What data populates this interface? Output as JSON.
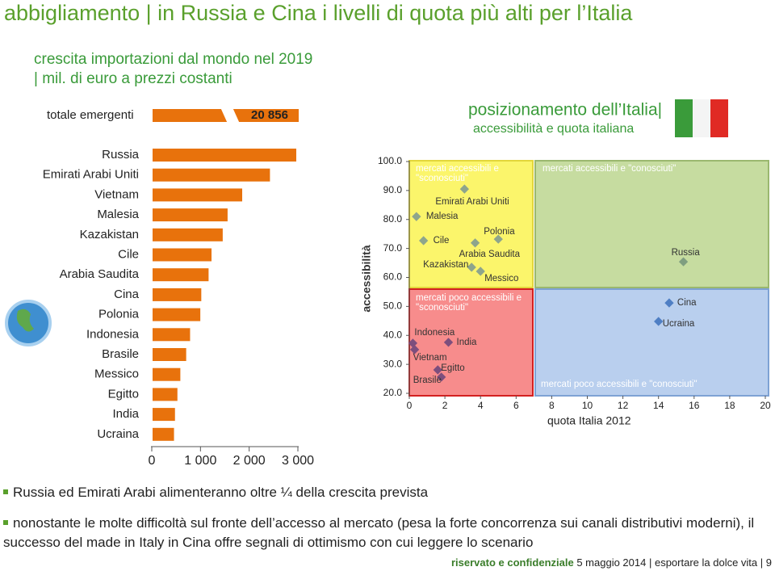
{
  "header": {
    "title": "abbigliamento | in Russia e Cina i livelli di quota più alti per l’Italia"
  },
  "chart_data": [
    {
      "type": "bar",
      "orientation": "horizontal",
      "subtitle": "crescita importazioni dal mondo nel 2019 | mil. di euro a prezzi costanti",
      "total": {
        "label": "totale emergenti",
        "value": 20856,
        "value_label": "20 856"
      },
      "categories": [
        "Russia",
        "Emirati Arabi Uniti",
        "Vietnam",
        "Malesia",
        "Kazakistan",
        "Cile",
        "Arabia Saudita",
        "Cina",
        "Polonia",
        "Indonesia",
        "Brasile",
        "Messico",
        "Egitto",
        "India",
        "Ucraina"
      ],
      "values": [
        2950,
        2410,
        1840,
        1540,
        1440,
        1210,
        1150,
        1000,
        980,
        770,
        690,
        570,
        510,
        460,
        440
      ],
      "color": "#e8720c",
      "xlim": [
        0,
        3000
      ],
      "xticks": [
        0,
        {
          "value": 1000,
          "label": "1 000"
        },
        {
          "value": 2000,
          "label": "2 000"
        },
        {
          "value": 3000,
          "label": "3 000"
        }
      ]
    },
    {
      "type": "scatter",
      "title": "posizionamento dell’Italia|",
      "subtitle": "accessibilità e quota italiana",
      "x_label": "quota Italia 2012",
      "y_label": "accessibilità",
      "quadrants": [
        "mercati accessibili e \"sconosciuti\"",
        "mercati accessibili e \"conosciuti\"",
        "mercati  poco accessibili e \"sconosciuti\"",
        "mercati  poco accessibili e \"conosciuti\""
      ],
      "points": [
        {
          "label": "Emirati Arabi Uniti",
          "x": 3.1,
          "y": 90.5,
          "color": "#8ea58c"
        },
        {
          "label": "Malesia",
          "x": 0.4,
          "y": 81.0,
          "color": "#8ea58c"
        },
        {
          "label": "Polonia",
          "x": 5.0,
          "y": 73.2,
          "color": "#8ea58c"
        },
        {
          "label": "Cile",
          "x": 0.8,
          "y": 72.7,
          "color": "#8ea58c"
        },
        {
          "label": "Arabia Saudita",
          "x": 3.7,
          "y": 71.9,
          "color": "#8ea58c"
        },
        {
          "label": "Kazakistan",
          "x": 3.5,
          "y": 63.5,
          "color": "#8ea58c"
        },
        {
          "label": "Messico",
          "x": 4.0,
          "y": 62.1,
          "color": "#8ea58c"
        },
        {
          "label": "Russia",
          "x": 15.4,
          "y": 65.4,
          "color": "#7f9e80"
        },
        {
          "label": "Cina",
          "x": 14.6,
          "y": 51.2,
          "color": "#4f7fc4"
        },
        {
          "label": "Ucraina",
          "x": 14.0,
          "y": 44.8,
          "color": "#4f7fc4"
        },
        {
          "label": "Indonesia",
          "x": 0.2,
          "y": 37.3,
          "color": "#7d4e7d"
        },
        {
          "label": "India",
          "x": 2.2,
          "y": 37.6,
          "color": "#7d4e7d"
        },
        {
          "label": "Vietnam",
          "x": 0.3,
          "y": 35.1,
          "color": "#7d4e7d"
        },
        {
          "label": "Egitto",
          "x": 1.6,
          "y": 28.1,
          "color": "#7d4e7d"
        },
        {
          "label": "Brasile",
          "x": 1.8,
          "y": 25.6,
          "color": "#7d4e7d"
        }
      ],
      "xlim": [
        0,
        20
      ],
      "xticks": [
        0,
        2,
        4,
        6,
        8,
        10,
        12,
        14,
        16,
        18,
        20
      ],
      "ylim": [
        20,
        100
      ],
      "yticks": [
        {
          "value": 20,
          "label": "20.0"
        },
        {
          "value": 30,
          "label": "30.0"
        },
        {
          "value": 40,
          "label": "40.0"
        },
        {
          "value": 50,
          "label": "50.0"
        },
        {
          "value": 60,
          "label": "60.0"
        },
        {
          "value": 70,
          "label": "70.0"
        },
        {
          "value": 80,
          "label": "80.0"
        },
        {
          "value": 90,
          "label": "90.0"
        },
        {
          "value": 100,
          "label": "100.0"
        }
      ]
    }
  ],
  "bullets": [
    "Russia ed Emirati Arabi alimenteranno oltre ¼ della crescita prevista",
    "nonostante le molte difficoltà sul fronte dell’accesso al mercato (pesa la forte concorrenza sui canali distributivi moderni), il successo del made in Italy in Cina offre segnali di ottimismo con cui leggere lo scenario"
  ],
  "footer": {
    "label": "riservato e confidenziale",
    "date": "5 maggio 2014",
    "project": "esportare la dolce vita",
    "page": "9"
  }
}
